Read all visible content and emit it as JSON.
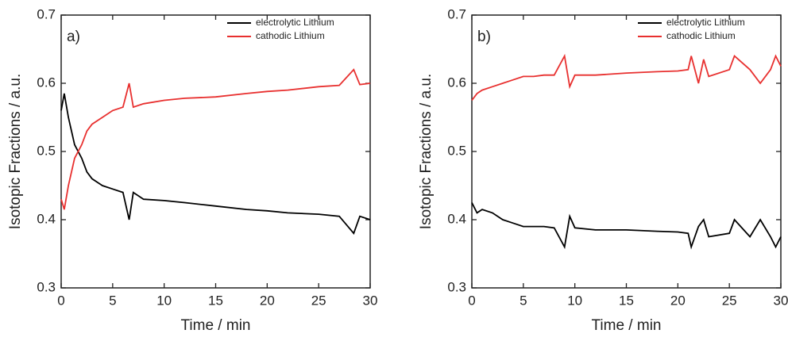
{
  "chart_data": [
    {
      "type": "line",
      "panel_label": "a)",
      "xlabel": "Time / min",
      "ylabel": "Isotopic Fractions / a.u.",
      "x": [
        0,
        0.3,
        0.7,
        1,
        1.3,
        2,
        2.5,
        3,
        4,
        5,
        6,
        6.6,
        7,
        8,
        10,
        12,
        15,
        18,
        20,
        22,
        25,
        27,
        28.4,
        29,
        30
      ],
      "series": [
        {
          "name": "electrolytic Lithium",
          "color": "#000000",
          "values": [
            0.56,
            0.585,
            0.55,
            0.53,
            0.51,
            0.49,
            0.47,
            0.46,
            0.45,
            0.445,
            0.44,
            0.4,
            0.44,
            0.43,
            0.428,
            0.425,
            0.42,
            0.415,
            0.413,
            0.41,
            0.408,
            0.405,
            0.38,
            0.405,
            0.4
          ]
        },
        {
          "name": "cathodic Lithium",
          "color": "#e8302f",
          "values": [
            0.43,
            0.415,
            0.45,
            0.47,
            0.49,
            0.51,
            0.53,
            0.54,
            0.55,
            0.56,
            0.565,
            0.6,
            0.565,
            0.57,
            0.575,
            0.578,
            0.58,
            0.585,
            0.588,
            0.59,
            0.595,
            0.597,
            0.62,
            0.598,
            0.6
          ]
        }
      ],
      "xlim": [
        0,
        30
      ],
      "ylim": [
        0.3,
        0.7
      ],
      "xticks": [
        0,
        5,
        10,
        15,
        20,
        25,
        30
      ],
      "yticks": [
        0.3,
        0.4,
        0.5,
        0.6,
        0.7
      ],
      "grid": false,
      "legend": "upper right"
    },
    {
      "type": "line",
      "panel_label": "b)",
      "xlabel": "Time / min",
      "ylabel": "Isotopic Fractions / a.u.",
      "x": [
        0,
        0.5,
        1,
        2,
        3,
        4,
        5,
        6,
        7,
        8,
        9,
        9.5,
        10,
        12,
        15,
        18,
        20,
        21,
        21.3,
        22,
        22.5,
        23,
        25,
        25.5,
        27,
        28,
        29,
        29.5,
        30
      ],
      "series": [
        {
          "name": "electrolytic Lithium",
          "color": "#000000",
          "values": [
            0.425,
            0.41,
            0.415,
            0.41,
            0.4,
            0.395,
            0.39,
            0.39,
            0.39,
            0.388,
            0.36,
            0.405,
            0.388,
            0.385,
            0.385,
            0.383,
            0.382,
            0.38,
            0.36,
            0.39,
            0.4,
            0.375,
            0.38,
            0.4,
            0.375,
            0.4,
            0.375,
            0.36,
            0.375
          ]
        },
        {
          "name": "cathodic Lithium",
          "color": "#e8302f",
          "values": [
            0.575,
            0.585,
            0.59,
            0.595,
            0.6,
            0.605,
            0.61,
            0.61,
            0.612,
            0.612,
            0.64,
            0.595,
            0.612,
            0.612,
            0.615,
            0.617,
            0.618,
            0.62,
            0.64,
            0.6,
            0.635,
            0.61,
            0.62,
            0.64,
            0.62,
            0.6,
            0.62,
            0.64,
            0.625
          ]
        }
      ],
      "xlim": [
        0,
        30
      ],
      "ylim": [
        0.3,
        0.7
      ],
      "xticks": [
        0,
        5,
        10,
        15,
        20,
        25,
        30
      ],
      "yticks": [
        0.3,
        0.4,
        0.5,
        0.6,
        0.7
      ],
      "grid": false,
      "legend": "upper right"
    }
  ]
}
